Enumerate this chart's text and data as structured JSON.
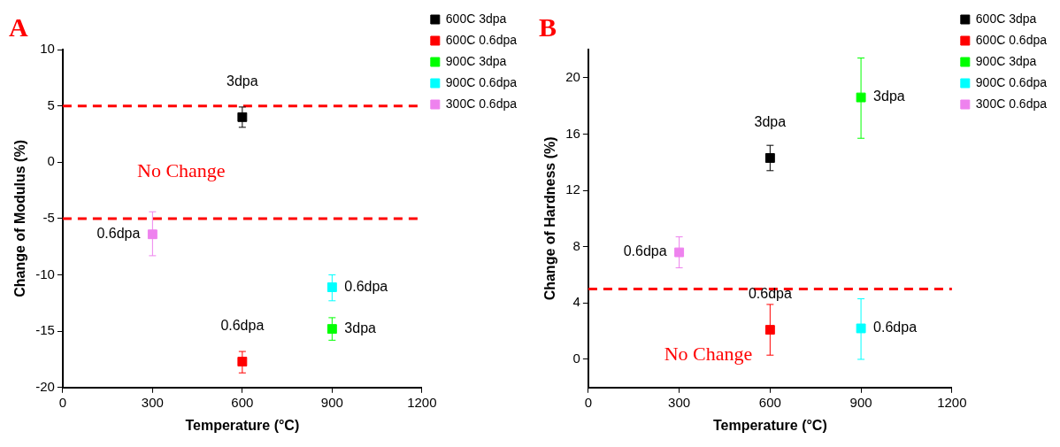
{
  "chart_data": [
    {
      "type": "scatter",
      "title": "A",
      "xlabel": "Temperature (°C)",
      "ylabel": "Change of Modulus (%)",
      "xlim": [
        0,
        1200
      ],
      "xticks": [
        0,
        300,
        600,
        900,
        1200
      ],
      "ylim": [
        -20,
        10
      ],
      "yticks": [
        -20,
        -15,
        -10,
        -5,
        0,
        5,
        10
      ],
      "grid": false,
      "legend": "top right",
      "marker": "square",
      "series": [
        {
          "name": "600C 3dpa",
          "color": "#000000",
          "x": [
            600
          ],
          "values": [
            4.0
          ],
          "errors": [
            [
              3.1,
              4.9
            ]
          ]
        },
        {
          "name": "600C 0.6dpa",
          "color": "#ff0000",
          "x": [
            600
          ],
          "values": [
            -17.7
          ],
          "errors": [
            [
              -18.7,
              -16.8
            ]
          ]
        },
        {
          "name": "900C 3dpa",
          "color": "#00ff00",
          "x": [
            900
          ],
          "values": [
            -14.8
          ],
          "errors": [
            [
              -15.8,
              -13.8
            ]
          ]
        },
        {
          "name": "900C 0.6dpa",
          "color": "#00ffff",
          "x": [
            900
          ],
          "values": [
            -11.1
          ],
          "errors": [
            [
              -12.3,
              -10.0
            ]
          ]
        },
        {
          "name": "300C 0.6dpa",
          "color": "#ee82ee",
          "x": [
            300
          ],
          "values": [
            -6.4
          ],
          "errors": [
            [
              -8.3,
              -4.4
            ]
          ]
        }
      ],
      "ref_lines": [
        {
          "axis": "y",
          "value": 5,
          "color": "#ff0000",
          "line_style": "dashed",
          "label": "No Change"
        },
        {
          "axis": "y",
          "value": -5,
          "color": "#ff0000",
          "line_style": "dashed"
        }
      ],
      "annotations": [
        {
          "text": "3dpa",
          "x": 600,
          "y": 4.0
        },
        {
          "text": "0.6dpa",
          "x": 600,
          "y": -17.7
        },
        {
          "text": "3dpa",
          "x": 900,
          "y": -14.8
        },
        {
          "text": "0.6dpa",
          "x": 900,
          "y": -11.1
        },
        {
          "text": "0.6dpa",
          "x": 300,
          "y": -6.4
        }
      ]
    },
    {
      "type": "scatter",
      "title": "B",
      "xlabel": "Temperature (°C)",
      "ylabel": "Change of Hardness (%)",
      "xlim": [
        0,
        1200
      ],
      "xticks": [
        0,
        300,
        600,
        900,
        1200
      ],
      "ylim": [
        -2,
        22
      ],
      "yticks": [
        0,
        4,
        8,
        12,
        16,
        20
      ],
      "grid": false,
      "legend": "top right",
      "marker": "square",
      "series": [
        {
          "name": "600C 3dpa",
          "color": "#000000",
          "x": [
            600
          ],
          "values": [
            14.3
          ],
          "errors": [
            [
              13.4,
              15.2
            ]
          ]
        },
        {
          "name": "600C 0.6dpa",
          "color": "#ff0000",
          "x": [
            600
          ],
          "values": [
            2.1
          ],
          "errors": [
            [
              0.3,
              3.9
            ]
          ]
        },
        {
          "name": "900C 3dpa",
          "color": "#00ff00",
          "x": [
            900
          ],
          "values": [
            18.6
          ],
          "errors": [
            [
              15.7,
              21.4
            ]
          ]
        },
        {
          "name": "900C 0.6dpa",
          "color": "#00ffff",
          "x": [
            900
          ],
          "values": [
            2.2
          ],
          "errors": [
            [
              0,
              4.3
            ]
          ]
        },
        {
          "name": "300C 0.6dpa",
          "color": "#ee82ee",
          "x": [
            300
          ],
          "values": [
            7.6
          ],
          "errors": [
            [
              6.5,
              8.7
            ]
          ]
        }
      ],
      "ref_lines": [
        {
          "axis": "y",
          "value": 5,
          "color": "#ff0000",
          "line_style": "dashed",
          "label": "No Change"
        }
      ],
      "annotations": [
        {
          "text": "3dpa",
          "x": 600,
          "y": 14.3
        },
        {
          "text": "0.6dpa",
          "x": 600,
          "y": 2.1
        },
        {
          "text": "3dpa",
          "x": 900,
          "y": 18.6
        },
        {
          "text": "0.6dpa",
          "x": 900,
          "y": 2.2
        },
        {
          "text": "0.6dpa",
          "x": 300,
          "y": 7.6
        }
      ]
    }
  ]
}
